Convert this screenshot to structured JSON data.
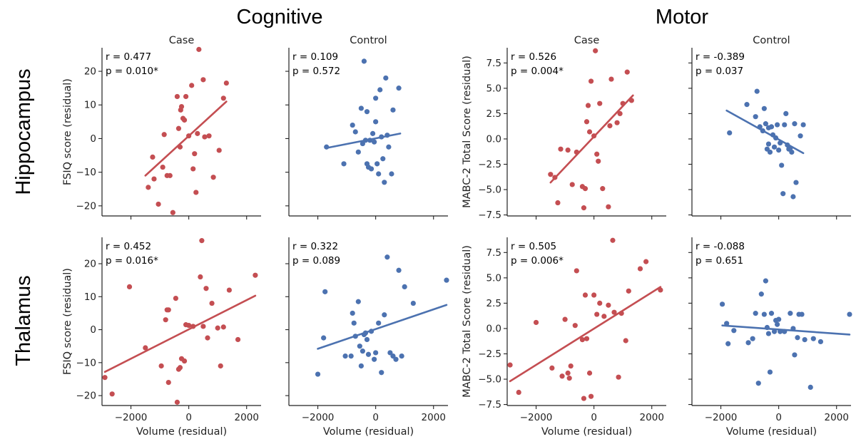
{
  "section_titles": [
    "Cognitive",
    "Motor"
  ],
  "row_titles": [
    "Hippocampus",
    "Thalamus"
  ],
  "colors": {
    "case": "#c44e52",
    "control": "#4c72b0"
  },
  "chart_data": [
    {
      "type": "scatter",
      "section": "Cognitive",
      "row": "Hippocampus",
      "title": "Case",
      "color": "#c44e52",
      "ylabel": "FSIQ score (residual)",
      "xlabel": "",
      "xlim": [
        -3000,
        2500
      ],
      "ylim": [
        -23,
        27
      ],
      "xticks": [
        -2000,
        0,
        2000
      ],
      "yticks": [
        -20,
        -10,
        0,
        10,
        20
      ],
      "stats": [
        "r = 0.477",
        "p = 0.010*"
      ],
      "fit": {
        "x": [
          -1500,
          1300
        ],
        "y": [
          -11,
          11
        ]
      },
      "x": [
        -1400,
        -1250,
        -1200,
        -1050,
        -900,
        -850,
        -750,
        -650,
        -550,
        -400,
        -350,
        -300,
        -280,
        -250,
        -200,
        -150,
        -100,
        0,
        100,
        150,
        200,
        250,
        300,
        350,
        500,
        550,
        700,
        850,
        1050,
        1200,
        1300
      ],
      "y": [
        -14.5,
        -5.5,
        -12,
        -19.5,
        -8.5,
        1.2,
        -11,
        -11,
        -22,
        12.5,
        3,
        -2.5,
        8.5,
        9.5,
        6,
        5.5,
        12.5,
        0.8,
        15.8,
        -9,
        -4.5,
        -16,
        1.5,
        26.5,
        17.5,
        0.5,
        0.8,
        -11.5,
        -3.5,
        12,
        16.5
      ]
    },
    {
      "type": "scatter",
      "section": "Cognitive",
      "row": "Hippocampus",
      "title": "Control",
      "color": "#4c72b0",
      "ylabel": "",
      "xlabel": "",
      "xlim": [
        -3000,
        2500
      ],
      "ylim": [
        -23,
        27
      ],
      "xticks": [
        -2000,
        0,
        2000
      ],
      "yticks": [
        -20,
        -10,
        0,
        10,
        20
      ],
      "stats": [
        "r = 0.109",
        "p = 0.572"
      ],
      "fit": {
        "x": [
          -1700,
          850
        ],
        "y": [
          -2.8,
          1.5
        ]
      },
      "x": [
        -1700,
        -1100,
        -800,
        -700,
        -600,
        -500,
        -450,
        -400,
        -350,
        -300,
        -300,
        -250,
        -200,
        -150,
        -100,
        -50,
        0,
        0,
        50,
        100,
        150,
        200,
        250,
        300,
        350,
        400,
        450,
        550,
        600,
        800
      ],
      "y": [
        -2.5,
        -7.5,
        4,
        2,
        -4,
        9,
        -1.5,
        23,
        -0.5,
        8,
        -7.5,
        -8.5,
        -0.5,
        -9,
        1.5,
        -1,
        5,
        12,
        -7.5,
        -10.5,
        14.5,
        0.5,
        -6,
        -13,
        18,
        1,
        -2.5,
        -10.5,
        8.5,
        15
      ]
    },
    {
      "type": "scatter",
      "section": "Motor",
      "row": "Hippocampus",
      "title": "Case",
      "color": "#c44e52",
      "ylabel": "MABC-2 Total Score (residual)",
      "xlabel": "",
      "xlim": [
        -3000,
        2500
      ],
      "ylim": [
        -7.6,
        9
      ],
      "xticks": [
        -2000,
        0,
        2000
      ],
      "yticks": [
        -7.5,
        -5.0,
        -2.5,
        0.0,
        2.5,
        5.0,
        7.5
      ],
      "stats": [
        "r = 0.526",
        "p = 0.004*"
      ],
      "fit": {
        "x": [
          -1500,
          1350
        ],
        "y": [
          -4.3,
          4.3
        ]
      },
      "x": [
        -1500,
        -1350,
        -1250,
        -1150,
        -900,
        -750,
        -600,
        -400,
        -350,
        -300,
        -250,
        -200,
        -150,
        -100,
        0,
        50,
        100,
        150,
        200,
        300,
        500,
        550,
        600,
        800,
        900,
        1000,
        1150,
        1300
      ],
      "y": [
        -3.5,
        -3.8,
        -6.3,
        -1,
        -1.1,
        -4.5,
        -1.3,
        -4.7,
        -6.8,
        -4.9,
        1.7,
        3.3,
        0.7,
        5.7,
        0.3,
        8.7,
        -1.5,
        -2.2,
        3.5,
        -4.9,
        -6.7,
        1.3,
        5.9,
        1.6,
        2.5,
        3.5,
        6.6,
        3.8
      ],
      "x2": [],
      "y2": []
    },
    {
      "type": "scatter",
      "section": "Motor",
      "row": "Hippocampus",
      "title": "Control",
      "color": "#4c72b0",
      "ylabel": "",
      "xlabel": "",
      "xlim": [
        -3000,
        2500
      ],
      "ylim": [
        -7.6,
        9
      ],
      "xticks": [
        -2000,
        0,
        2000
      ],
      "yticks": [
        -7.5,
        -5.0,
        -2.5,
        0.0,
        2.5,
        5.0,
        7.5
      ],
      "stats": [
        "r = -0.389",
        "p = 0.037"
      ],
      "fit": {
        "x": [
          -1800,
          850
        ],
        "y": [
          2.8,
          -1.4
        ]
      },
      "x": [
        -1700,
        -1100,
        -800,
        -750,
        -650,
        -550,
        -500,
        -450,
        -400,
        -350,
        -350,
        -300,
        -250,
        -200,
        -150,
        -100,
        -50,
        0,
        50,
        100,
        150,
        200,
        250,
        300,
        350,
        400,
        450,
        500,
        550,
        600,
        750,
        850
      ],
      "y": [
        0.6,
        3.4,
        2.2,
        4.7,
        1.2,
        0.8,
        3,
        1.5,
        -1,
        -0.5,
        1.1,
        -1.3,
        1.2,
        0.4,
        -0.8,
        0.1,
        1.4,
        -1.1,
        -0.4,
        -2.6,
        -5.4,
        1.4,
        2.5,
        -0.6,
        -1,
        -0.9,
        -1.3,
        -5.7,
        1.5,
        -4.3,
        0.3,
        1.4
      ]
    },
    {
      "type": "scatter",
      "section": "Cognitive",
      "row": "Thalamus",
      "title": "Case",
      "color": "#c44e52",
      "ylabel": "FSIQ score (residual)",
      "xlabel": "Volume (residual)",
      "xlim": [
        -3000,
        2500
      ],
      "ylim": [
        -23,
        28
      ],
      "xticks": [
        -2000,
        0,
        2000
      ],
      "yticks": [
        -20,
        -10,
        0,
        10,
        20
      ],
      "stats": [
        "r = 0.452",
        "p = 0.016*"
      ],
      "fit": {
        "x": [
          -2900,
          2300
        ],
        "y": [
          -12.8,
          10.3
        ]
      },
      "x": [
        -2900,
        -2650,
        -2050,
        -1500,
        -950,
        -800,
        -750,
        -700,
        -700,
        -450,
        -400,
        -350,
        -300,
        -250,
        -150,
        -100,
        0,
        150,
        400,
        450,
        500,
        600,
        650,
        800,
        1000,
        1100,
        1200,
        1400,
        1700,
        2300
      ],
      "y": [
        -14.5,
        -19.5,
        13,
        -5.5,
        -11,
        3,
        6,
        6,
        -16,
        9.5,
        -22,
        -12,
        -11.5,
        -8.8,
        -9.5,
        1.5,
        1.3,
        1,
        16,
        27,
        1,
        12.5,
        -2.5,
        8,
        0.5,
        -11,
        0.8,
        12,
        -3,
        16.5
      ]
    },
    {
      "type": "scatter",
      "section": "Cognitive",
      "row": "Thalamus",
      "title": "Control",
      "color": "#4c72b0",
      "ylabel": "",
      "xlabel": "Volume (residual)",
      "xlim": [
        -3000,
        2500
      ],
      "ylim": [
        -23,
        28
      ],
      "xticks": [
        -2000,
        0,
        2000
      ],
      "yticks": [
        -20,
        -10,
        0,
        10,
        20
      ],
      "stats": [
        "r = 0.322",
        "p = 0.089"
      ],
      "fit": {
        "x": [
          -2000,
          2450
        ],
        "y": [
          -5.8,
          7.5
        ]
      },
      "x": [
        -2000,
        -1800,
        -1750,
        -1050,
        -850,
        -800,
        -750,
        -700,
        -600,
        -550,
        -500,
        -450,
        -400,
        -350,
        -300,
        -250,
        -150,
        -50,
        0,
        100,
        200,
        300,
        400,
        500,
        600,
        700,
        800,
        900,
        1000,
        1300,
        2450
      ],
      "y": [
        -13.5,
        -2.5,
        11.5,
        -8,
        -8,
        5,
        2,
        -2,
        8.5,
        -5,
        -11,
        -6.5,
        -1.5,
        -1,
        -3,
        -7.5,
        -0.5,
        -9,
        -7,
        2,
        -13,
        4.5,
        22,
        -7,
        -8,
        -9,
        18,
        -8,
        13,
        8,
        15
      ]
    },
    {
      "type": "scatter",
      "section": "Motor",
      "row": "Thalamus",
      "title": "Case",
      "color": "#c44e52",
      "ylabel": "MABC-2 Total Score (residual)",
      "xlabel": "Volume (residual)",
      "xlim": [
        -3000,
        2500
      ],
      "ylim": [
        -7.6,
        9
      ],
      "xticks": [
        -2000,
        0,
        2000
      ],
      "yticks": [
        -7.5,
        -5.0,
        -2.5,
        0.0,
        2.5,
        5.0,
        7.5
      ],
      "stats": [
        "r = 0.505",
        "p = 0.006*"
      ],
      "fit": {
        "x": [
          -2900,
          2300
        ],
        "y": [
          -5.2,
          4.1
        ]
      },
      "x": [
        -2900,
        -2600,
        -2000,
        -1450,
        -1100,
        -1000,
        -900,
        -850,
        -800,
        -650,
        -600,
        -400,
        -350,
        -300,
        -250,
        -150,
        -100,
        0,
        100,
        200,
        350,
        500,
        650,
        700,
        850,
        950,
        1100,
        1200,
        1600,
        1800,
        2300
      ],
      "y": [
        -3.6,
        -6.3,
        0.6,
        -3.9,
        -4.7,
        0.9,
        -4.4,
        -4.9,
        -3.7,
        0.3,
        5.7,
        -1.1,
        -6.9,
        3.3,
        -1,
        -4.4,
        -6.7,
        3.3,
        1.4,
        2.5,
        1.2,
        2.3,
        8.7,
        1.6,
        -4.8,
        1.5,
        -1.2,
        3.7,
        5.9,
        6.6,
        3.8
      ]
    },
    {
      "type": "scatter",
      "section": "Motor",
      "row": "Thalamus",
      "title": "Control",
      "color": "#4c72b0",
      "ylabel": "",
      "xlabel": "Volume (residual)",
      "xlim": [
        -3000,
        2500
      ],
      "ylim": [
        -7.6,
        9
      ],
      "xticks": [
        -2000,
        0,
        2000
      ],
      "yticks": [
        -7.5,
        -5.0,
        -2.5,
        0.0,
        2.5,
        5.0,
        7.5
      ],
      "stats": [
        "r = -0.088",
        "p = 0.651"
      ],
      "fit": {
        "x": [
          -1950,
          2450
        ],
        "y": [
          0.3,
          -0.6
        ]
      },
      "x": [
        -1950,
        -1800,
        -1750,
        -1550,
        -1050,
        -900,
        -800,
        -700,
        -600,
        -500,
        -450,
        -400,
        -350,
        -300,
        -250,
        -150,
        -100,
        -50,
        0,
        50,
        200,
        400,
        500,
        550,
        650,
        700,
        800,
        900,
        1100,
        1200,
        1450,
        2450
      ],
      "y": [
        2.4,
        0.5,
        -1.5,
        -0.2,
        -1.4,
        -1,
        1.5,
        -5.4,
        3.4,
        1.4,
        4.7,
        0.1,
        -0.5,
        -4.3,
        1.5,
        -0.3,
        0.8,
        0.4,
        0.9,
        -0.3,
        -0.3,
        1.5,
        0,
        -2.6,
        -0.9,
        1.4,
        1.4,
        -1.1,
        -5.8,
        -1,
        -1.3,
        1.4
      ]
    }
  ]
}
